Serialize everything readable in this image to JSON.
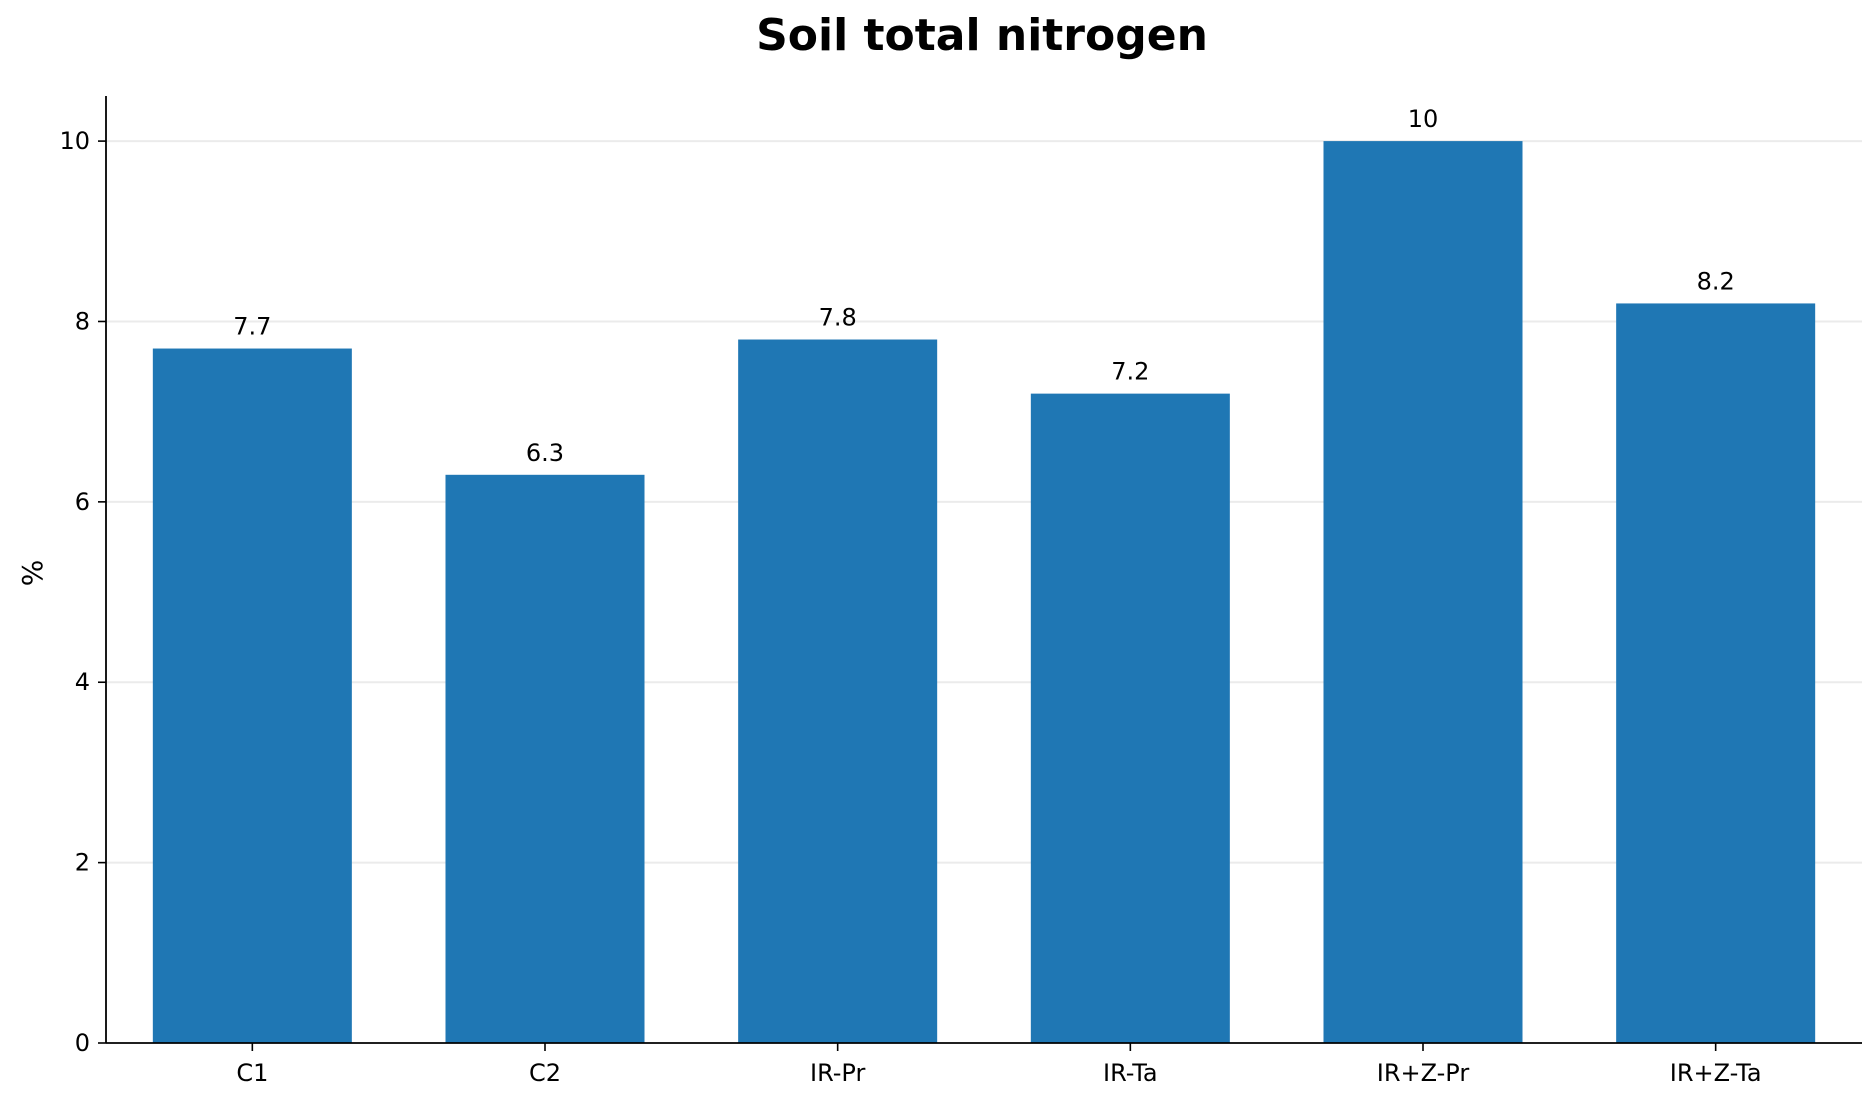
{
  "chart_data": {
    "type": "bar",
    "title": "Soil total nitrogen",
    "xlabel": "",
    "ylabel": "%",
    "categories": [
      "C1",
      "C2",
      "IR-Pr",
      "IR-Ta",
      "IR+Z-Pr",
      "IR+Z-Ta"
    ],
    "values": [
      7.7,
      6.3,
      7.8,
      7.2,
      10,
      8.2
    ],
    "data_labels": [
      "7.7",
      "6.3",
      "7.8",
      "7.2",
      "10",
      "8.2"
    ],
    "ylim": [
      0,
      10.5
    ],
    "yticks": [
      0,
      2,
      4,
      6,
      8,
      10
    ],
    "ytick_labels": [
      "0",
      "2",
      "4",
      "6",
      "8",
      "10"
    ],
    "grid": "y",
    "legend": "none",
    "bar_color": "#1f77b4",
    "grid_color": "#ebebeb",
    "axis_color": "#000000"
  }
}
